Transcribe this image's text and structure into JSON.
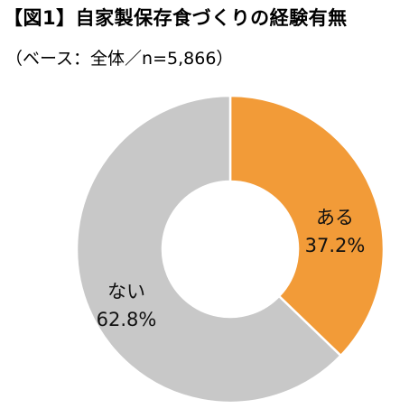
{
  "chart_data": {
    "type": "pie",
    "title": "【図1】自家製保存食づくりの経験有無",
    "subtitle": "（ベース：全体／n=5,866）",
    "categories": [
      "ある",
      "ない"
    ],
    "values": [
      37.2,
      62.8
    ],
    "value_labels": [
      "37.2%",
      "62.8%"
    ],
    "colors": [
      "#F29B38",
      "#C8C8C8"
    ],
    "donut": true,
    "start": "top",
    "direction": "clockwise",
    "legend": "none"
  }
}
